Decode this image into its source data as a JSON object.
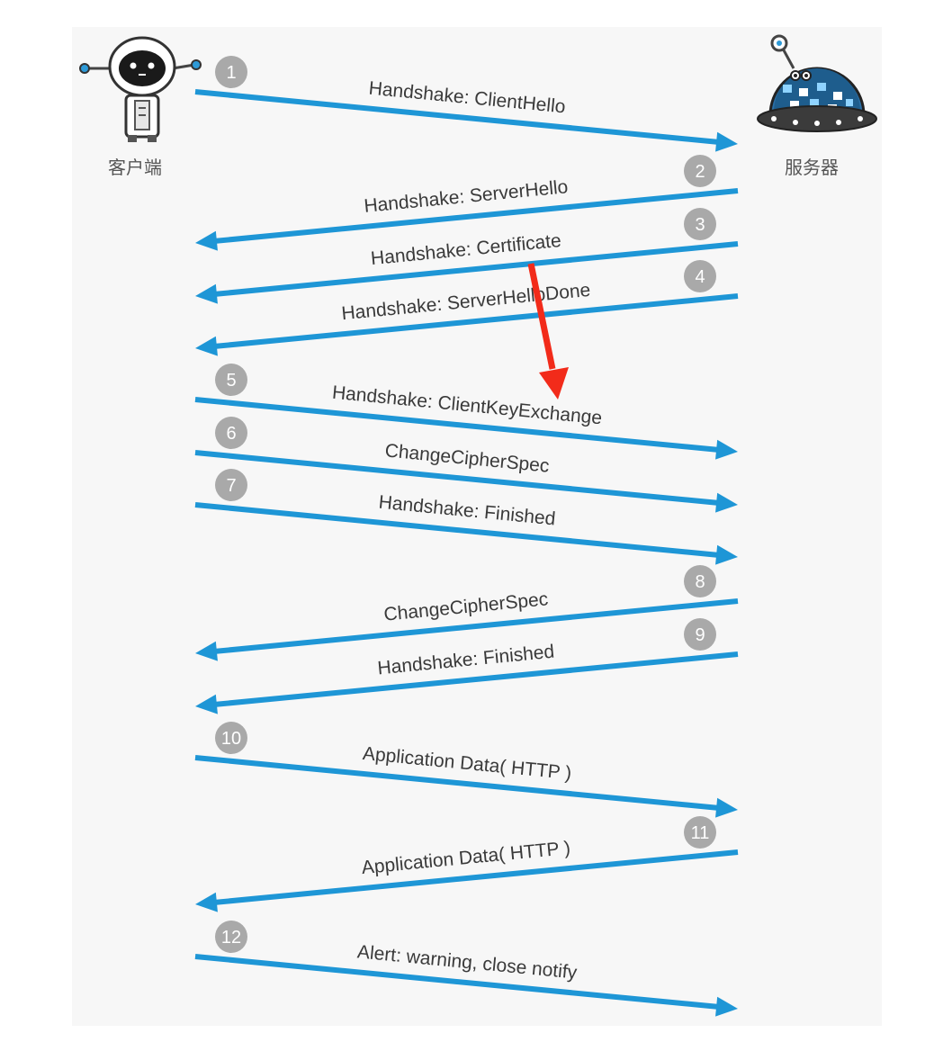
{
  "actors": {
    "client": {
      "label": "客户端",
      "icon": "robot-client-icon"
    },
    "server": {
      "label": "服务器",
      "icon": "robot-server-icon"
    }
  },
  "colors": {
    "arrow": "#1e96d6",
    "step_badge": "#a9a9a9",
    "highlight_arrow": "#f22b1a",
    "panel": "#f7f7f7"
  },
  "messages": [
    {
      "step": "1",
      "label": "Handshake: ClientHello",
      "direction": "client-to-server"
    },
    {
      "step": "2",
      "label": "Handshake: ServerHello",
      "direction": "server-to-client"
    },
    {
      "step": "3",
      "label": "Handshake: Certificate",
      "direction": "server-to-client"
    },
    {
      "step": "4",
      "label": "Handshake: ServerHelloDone",
      "direction": "server-to-client"
    },
    {
      "step": "5",
      "label": "Handshake: ClientKeyExchange",
      "direction": "client-to-server"
    },
    {
      "step": "6",
      "label": "ChangeCipherSpec",
      "direction": "client-to-server"
    },
    {
      "step": "7",
      "label": "Handshake: Finished",
      "direction": "client-to-server"
    },
    {
      "step": "8",
      "label": "ChangeCipherSpec",
      "direction": "server-to-client"
    },
    {
      "step": "9",
      "label": "Handshake: Finished",
      "direction": "server-to-client"
    },
    {
      "step": "10",
      "label": "Application Data( HTTP )",
      "direction": "client-to-server"
    },
    {
      "step": "11",
      "label": "Application Data( HTTP )",
      "direction": "server-to-client"
    },
    {
      "step": "12",
      "label": "Alert: warning, close notify",
      "direction": "client-to-server"
    }
  ],
  "highlight": {
    "icon": "red-pointer-arrow-icon",
    "from_step": "3",
    "to_step": "5"
  }
}
